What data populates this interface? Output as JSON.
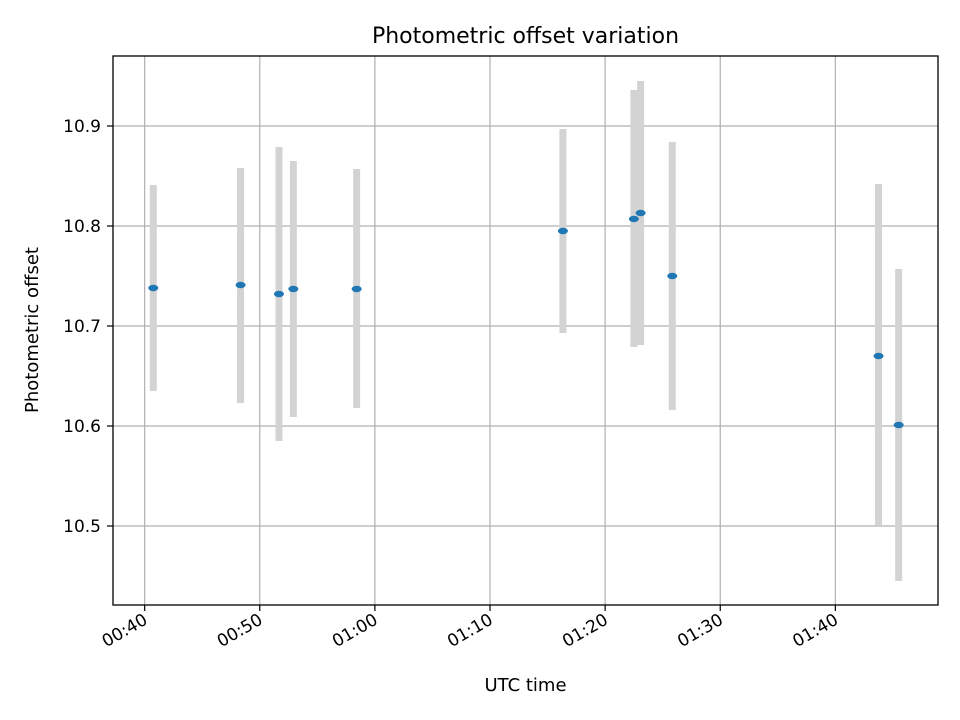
{
  "chart_data": {
    "type": "scatter",
    "title": "Photometric offset variation",
    "xlabel": "UTC time",
    "ylabel": "Photometric offset",
    "x_ticks": [
      "00:40",
      "00:50",
      "01:00",
      "01:10",
      "01:20",
      "01:30",
      "01:40"
    ],
    "y_ticks": [
      "10.5",
      "10.6",
      "10.7",
      "10.8",
      "10.9"
    ],
    "xlim": [
      "00:37:15",
      "01:48:55"
    ],
    "ylim": [
      10.421,
      10.97
    ],
    "grid": true,
    "colors": {
      "marker": "#1f77b4",
      "error_bar": "#d3d3d3",
      "grid": "#b0b0b0"
    },
    "points": [
      {
        "x": "00:40:45",
        "y": 10.738,
        "low": 10.635,
        "high": 10.841
      },
      {
        "x": "00:48:20",
        "y": 10.741,
        "low": 10.623,
        "high": 10.858
      },
      {
        "x": "00:51:40",
        "y": 10.732,
        "low": 10.585,
        "high": 10.879
      },
      {
        "x": "00:52:55",
        "y": 10.737,
        "low": 10.609,
        "high": 10.865
      },
      {
        "x": "00:58:25",
        "y": 10.737,
        "low": 10.618,
        "high": 10.857
      },
      {
        "x": "01:16:20",
        "y": 10.795,
        "low": 10.693,
        "high": 10.897
      },
      {
        "x": "01:22:30",
        "y": 10.807,
        "low": 10.679,
        "high": 10.936
      },
      {
        "x": "01:23:05",
        "y": 10.813,
        "low": 10.681,
        "high": 10.945
      },
      {
        "x": "01:25:50",
        "y": 10.75,
        "low": 10.616,
        "high": 10.884
      },
      {
        "x": "01:43:45",
        "y": 10.67,
        "low": 10.501,
        "high": 10.842
      },
      {
        "x": "01:45:30",
        "y": 10.601,
        "low": 10.445,
        "high": 10.757
      }
    ]
  }
}
